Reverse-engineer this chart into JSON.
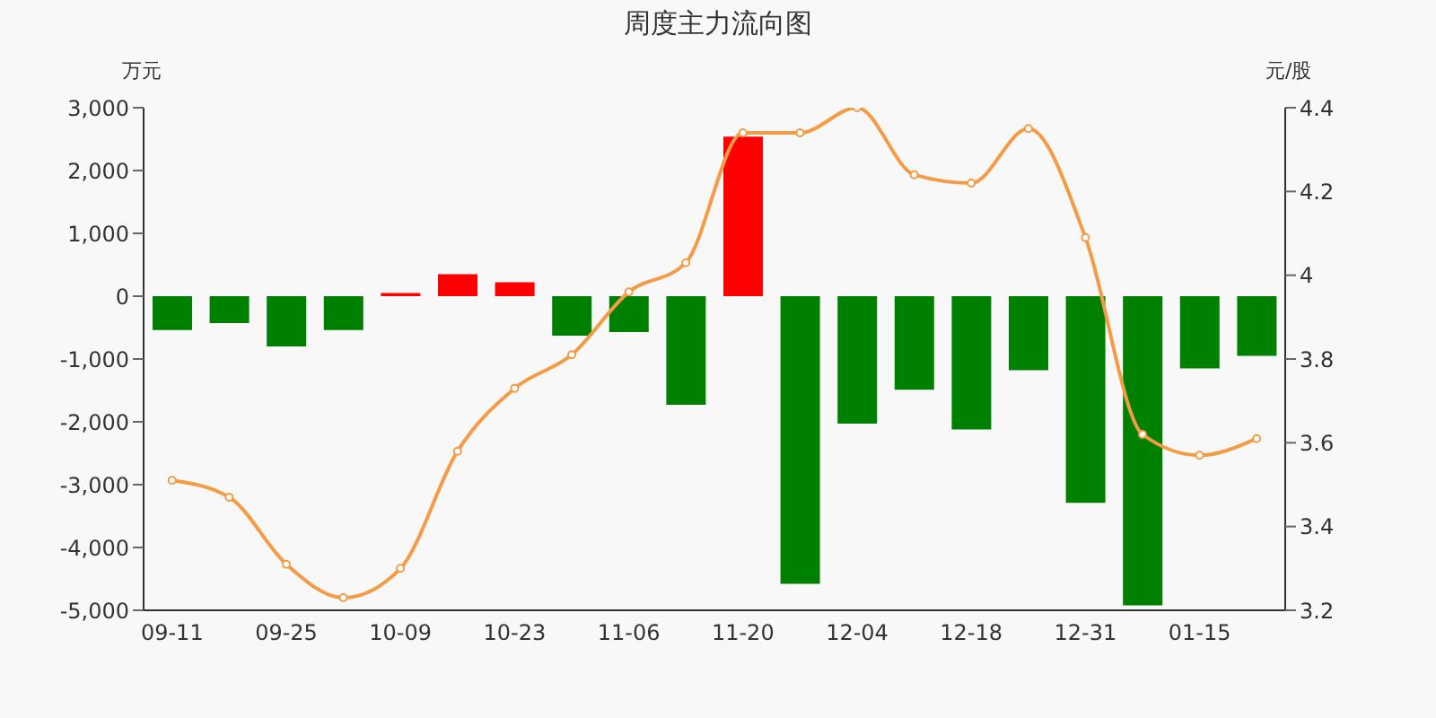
{
  "chart_data": {
    "type": "bar",
    "title": "周度主力流向图",
    "ylabel": "万元",
    "y2label": "元/股",
    "categories": [
      "09-11",
      null,
      "09-25",
      null,
      "10-09",
      null,
      "10-23",
      null,
      "11-06",
      null,
      "11-20",
      null,
      "12-04",
      null,
      "12-18",
      null,
      "12-31",
      null,
      "01-15",
      null
    ],
    "series": [
      {
        "colors": [
          "#008000",
          "#008000",
          "#008000",
          "#008000",
          "#ff0000",
          "#ff0000",
          "#ff0000",
          "#008000",
          "#008000",
          "#008000",
          "#ff0000",
          "#008000",
          "#008000",
          "#008000",
          "#008000",
          "#008000",
          "#008000",
          "#008000",
          "#008000",
          "#008000"
        ],
        "values": [
          -540,
          -430,
          -800,
          -540,
          50,
          350,
          220,
          -630,
          -570,
          -1730,
          2540,
          -4580,
          -2030,
          -1490,
          -2120,
          -1180,
          -3290,
          -4920,
          -1150,
          -950
        ]
      },
      {
        "type": "line",
        "axis": "y2",
        "color": "#f39c45",
        "marker": "circle",
        "values": [
          3.51,
          3.47,
          3.31,
          3.23,
          3.3,
          3.58,
          3.73,
          3.81,
          3.96,
          4.03,
          4.34,
          4.34,
          4.4,
          4.24,
          4.22,
          4.35,
          4.09,
          3.62,
          3.57,
          3.61
        ]
      }
    ],
    "ylim": [
      -5000,
      3000
    ],
    "yticks": [
      {
        "value": -5000,
        "label": "-5,000"
      },
      {
        "value": -4000,
        "label": "-4,000"
      },
      {
        "value": -3000,
        "label": "-3,000"
      },
      {
        "value": -2000,
        "label": "-2,000"
      },
      {
        "value": -1000,
        "label": "-1,000"
      },
      0,
      {
        "value": 1000,
        "label": "1,000"
      },
      {
        "value": 2000,
        "label": "2,000"
      },
      {
        "value": 3000,
        "label": "3,000"
      }
    ],
    "y2lim": [
      3.2,
      4.4
    ],
    "y2ticks": [
      3.2,
      3.4,
      3.6,
      3.8,
      4,
      4.2,
      4.4
    ]
  }
}
